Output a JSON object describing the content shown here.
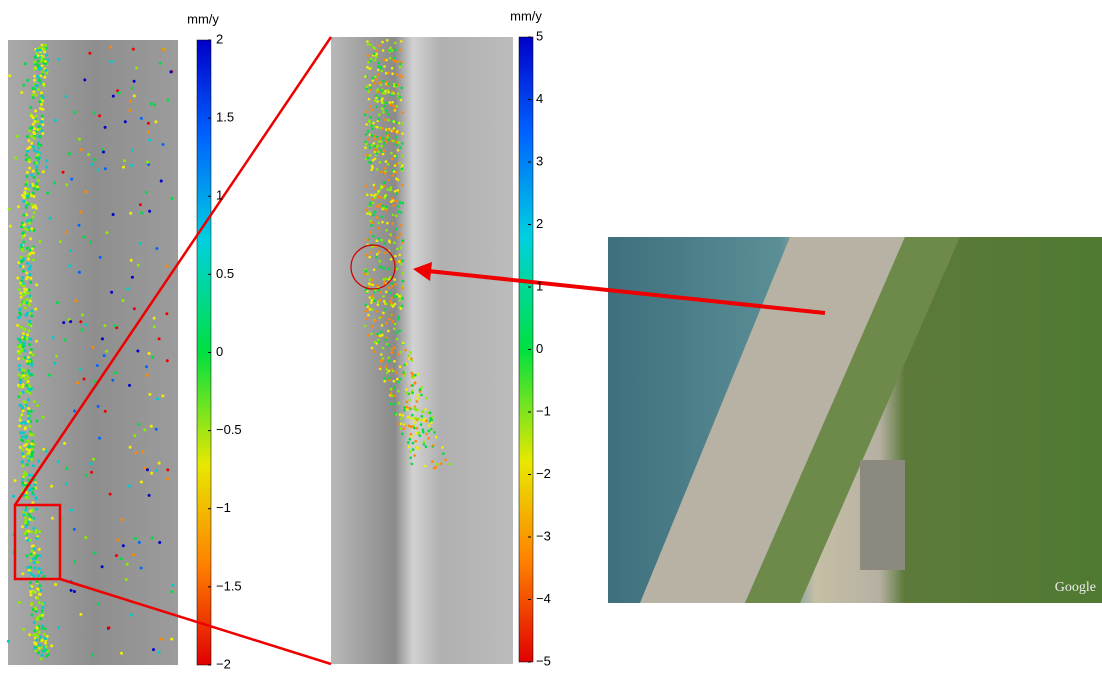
{
  "left_colorbar": {
    "unit": "mm/y",
    "ticks": [
      "2",
      "1.5",
      "1",
      "0.5",
      "0",
      "−0.5",
      "−1",
      "−1.5",
      "−2"
    ]
  },
  "right_colorbar": {
    "unit": "mm/y",
    "ticks": [
      "5",
      "4",
      "3",
      "2",
      "1",
      "0",
      "−1",
      "−2",
      "−3",
      "−4",
      "−5"
    ]
  },
  "photo": {
    "watermark": "Google"
  }
}
